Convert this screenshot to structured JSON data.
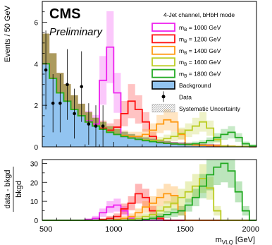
{
  "experiment": "CMS",
  "status": "Preliminary",
  "channel_label": "4-Jet channel, bHbH mode",
  "chart_data": [
    {
      "type": "histogram",
      "ylabel": "Events / 50 GeV",
      "xlim": [
        500,
        2000
      ],
      "ylim": [
        0,
        7
      ],
      "yticks": [
        "0",
        "2",
        "4",
        "6"
      ],
      "bin_edges": [
        500,
        550,
        600,
        650,
        700,
        750,
        800,
        850,
        900,
        950,
        1000,
        1050,
        1100,
        1150,
        1200,
        1250,
        1300,
        1350,
        1400,
        1450,
        1500,
        1550,
        1600,
        1650,
        1700,
        1750,
        1800,
        1850,
        1900,
        1950,
        2000
      ],
      "series": [
        {
          "name": "Background",
          "color": "#1f3fbf",
          "fill": "#92c4f0",
          "values": [
            4.0,
            3.3,
            2.6,
            2.2,
            1.8,
            1.5,
            1.2,
            1.0,
            0.85,
            0.7,
            0.6,
            0.5,
            0.42,
            0.36,
            0.3,
            0.25,
            0.2,
            0.17,
            0.14,
            0.12,
            0.1,
            0.08,
            0.07,
            0.06,
            0.05,
            0.04,
            0.03,
            0.02,
            0.02,
            0.01
          ]
        },
        {
          "name": "m_B = 1000 GeV",
          "color": "#ee22ee",
          "values": [
            4.0,
            3.3,
            2.6,
            2.2,
            1.8,
            1.5,
            1.25,
            1.1,
            3.2,
            4.8,
            2.6,
            0.5,
            0.42,
            0.36,
            0.3,
            0.25,
            0.2,
            0.17,
            0.14,
            0.12,
            0.1,
            0.08,
            0.07,
            0.06,
            0.05,
            0.04,
            0.03,
            0.02,
            0.02,
            0.01
          ]
        },
        {
          "name": "m_B = 1200 GeV",
          "color": "#ff1111",
          "values": [
            4.0,
            3.3,
            2.6,
            2.2,
            1.8,
            1.5,
            1.2,
            1.0,
            0.9,
            0.8,
            0.95,
            1.6,
            2.2,
            1.8,
            1.2,
            0.5,
            0.2,
            0.17,
            0.14,
            0.12,
            0.1,
            0.08,
            0.07,
            0.06,
            0.05,
            0.04,
            0.03,
            0.02,
            0.02,
            0.01
          ]
        },
        {
          "name": "m_B = 1400 GeV",
          "color": "#ff9911",
          "values": [
            4.0,
            3.3,
            2.6,
            2.2,
            1.8,
            1.5,
            1.2,
            1.0,
            0.85,
            0.7,
            0.6,
            0.55,
            0.5,
            0.5,
            0.6,
            0.8,
            1.1,
            1.3,
            1.2,
            0.6,
            0.1,
            0.08,
            0.07,
            0.06,
            0.05,
            0.04,
            0.03,
            0.02,
            0.02,
            0.01
          ]
        },
        {
          "name": "m_B = 1600 GeV",
          "color": "#bbcc22",
          "values": [
            4.0,
            3.3,
            2.6,
            2.2,
            1.8,
            1.5,
            1.2,
            1.0,
            0.85,
            0.7,
            0.6,
            0.5,
            0.42,
            0.36,
            0.33,
            0.3,
            0.32,
            0.4,
            0.5,
            0.65,
            0.8,
            1.0,
            1.2,
            0.9,
            0.35,
            0.04,
            0.03,
            0.02,
            0.02,
            0.01
          ]
        },
        {
          "name": "m_B = 1800 GeV",
          "color": "#22aa22",
          "values": [
            4.0,
            3.3,
            2.6,
            2.2,
            1.8,
            1.5,
            1.2,
            1.0,
            0.85,
            0.7,
            0.6,
            0.5,
            0.42,
            0.36,
            0.3,
            0.25,
            0.2,
            0.17,
            0.14,
            0.12,
            0.12,
            0.15,
            0.2,
            0.3,
            0.45,
            0.6,
            0.7,
            0.45,
            0.15,
            0.05
          ]
        }
      ],
      "data_points": {
        "name": "Data",
        "x": [
          525,
          575,
          625,
          675,
          725,
          775,
          825,
          875,
          925
        ],
        "y": [
          3.7,
          2.1,
          2.1,
          3.0,
          1.6,
          2.9,
          1.1,
          1.0,
          1.0
        ],
        "err": [
          1.9,
          1.4,
          1.4,
          1.7,
          1.2,
          1.7,
          1.0,
          1.0,
          1.0
        ]
      },
      "systematic_label": "Systematic Uncertainty",
      "legend_position": "top-right"
    },
    {
      "type": "histogram",
      "ylabel_num": "data - bkgd",
      "ylabel_den": "bkgd",
      "xlabel": "m",
      "xlabel_sub": "VLQ",
      "xlabel_unit": " [GeV]",
      "xlim": [
        500,
        2000
      ],
      "ylim": [
        0,
        32
      ],
      "yticks": [
        "0",
        "10",
        "20",
        "30"
      ],
      "xticks": [
        "500",
        "1000",
        "1500",
        "2000"
      ],
      "bin_edges": [
        500,
        550,
        600,
        650,
        700,
        750,
        800,
        850,
        900,
        950,
        1000,
        1050,
        1100,
        1150,
        1200,
        1250,
        1300,
        1350,
        1400,
        1450,
        1500,
        1550,
        1600,
        1650,
        1700,
        1750,
        1800,
        1850,
        1900,
        1950,
        2000
      ],
      "series": [
        {
          "name": "m_B = 1000 GeV",
          "color": "#ee22ee",
          "values": [
            0,
            0,
            0,
            0,
            0,
            0,
            0.5,
            1,
            4,
            7,
            8,
            5,
            1,
            0,
            0,
            0,
            0,
            0,
            0,
            0,
            0,
            0,
            0,
            0,
            0,
            0,
            0,
            0,
            0,
            0
          ]
        },
        {
          "name": "m_B = 1200 GeV",
          "color": "#ff1111",
          "values": [
            0,
            0,
            0,
            0,
            0,
            0,
            0,
            0,
            0.5,
            1,
            2,
            6,
            9,
            14,
            12,
            5,
            1,
            0,
            0,
            0,
            0,
            0,
            0,
            0,
            0,
            0,
            0,
            0,
            0,
            0
          ]
        },
        {
          "name": "m_B = 1400 GeV",
          "color": "#ff9911",
          "values": [
            0,
            0,
            0,
            0,
            0,
            0,
            0,
            0,
            0,
            0,
            0.5,
            1,
            2,
            4,
            7,
            9,
            12,
            14,
            13,
            5,
            0,
            0,
            0,
            0,
            0,
            0,
            0,
            0,
            0,
            0
          ]
        },
        {
          "name": "m_B = 1600 GeV",
          "color": "#bbcc22",
          "values": [
            0,
            0,
            0,
            0,
            0,
            0,
            0,
            0,
            0,
            0,
            0,
            0,
            0.5,
            1,
            2,
            3,
            5,
            7,
            9,
            12,
            15,
            18,
            22,
            17,
            5,
            0,
            0,
            0,
            0,
            0
          ]
        },
        {
          "name": "m_B = 1800 GeV",
          "color": "#22aa22",
          "values": [
            0,
            0,
            0,
            0,
            0,
            0,
            0,
            0,
            0,
            0,
            0,
            0,
            0,
            0,
            0.5,
            1,
            2,
            3,
            4,
            5,
            8,
            12,
            18,
            24,
            28,
            30,
            26,
            15,
            5,
            0
          ]
        }
      ]
    }
  ]
}
